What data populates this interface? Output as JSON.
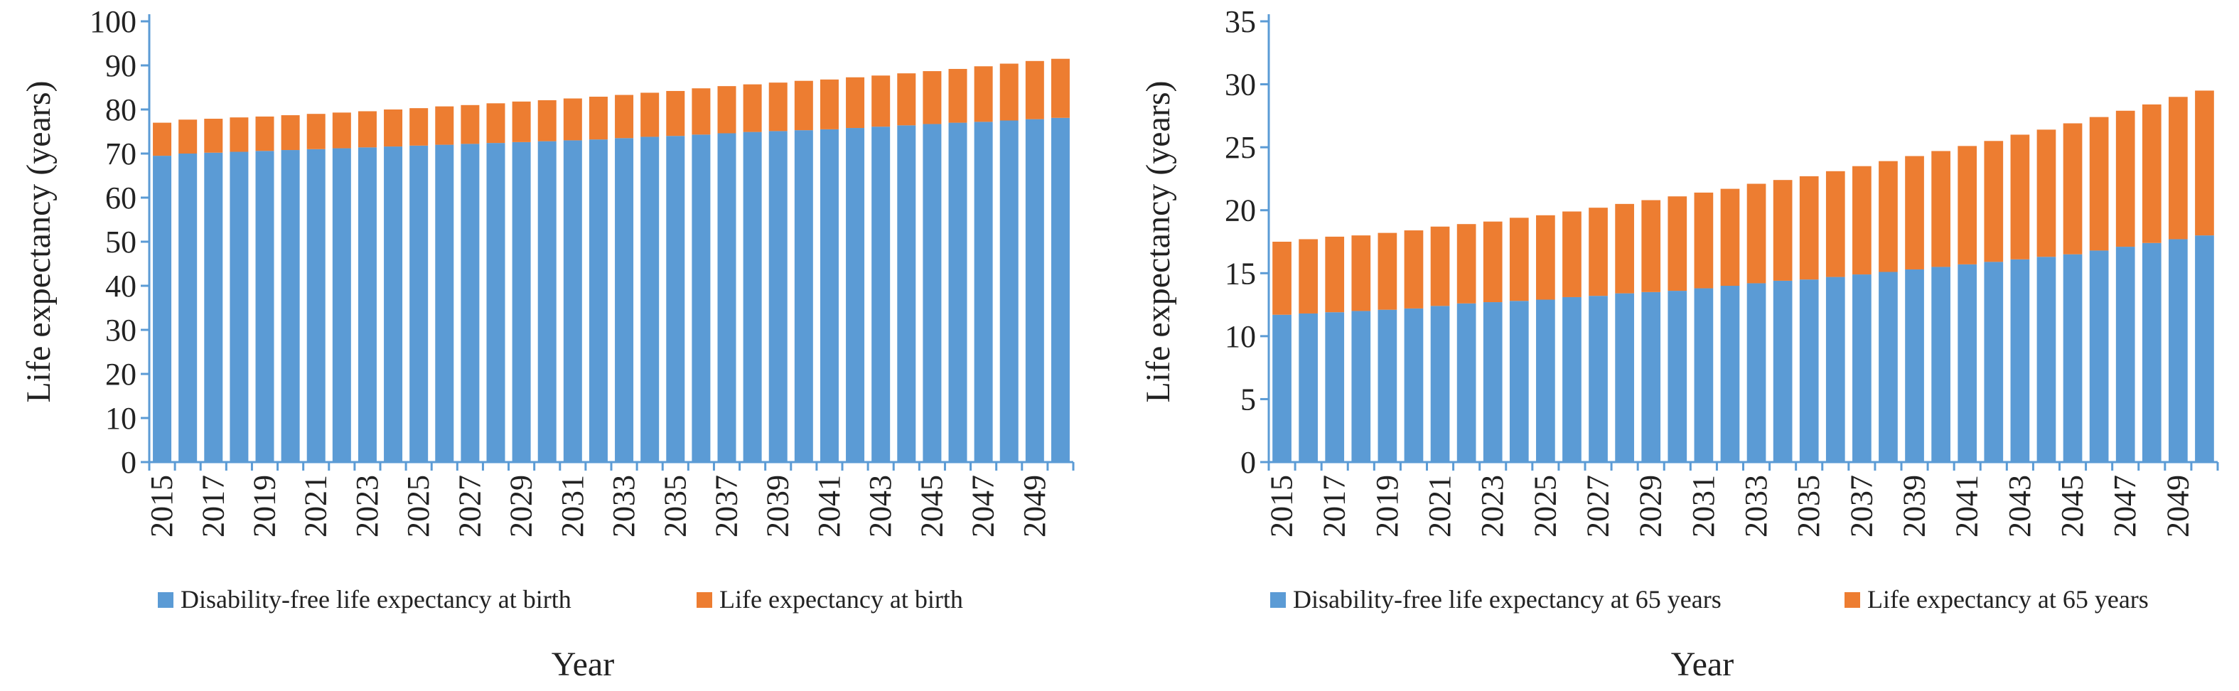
{
  "chart_data": [
    {
      "type": "bar",
      "stacked": true,
      "title": "",
      "xlabel": "Year",
      "ylabel": "Life expectancy (years)",
      "ylim": [
        0,
        100
      ],
      "ytick_step": 10,
      "grid": false,
      "legend_position": "bottom",
      "categories": [
        "2015",
        "2016",
        "2017",
        "2018",
        "2019",
        "2020",
        "2021",
        "2022",
        "2023",
        "2024",
        "2025",
        "2026",
        "2027",
        "2028",
        "2029",
        "2030",
        "2031",
        "2032",
        "2033",
        "2034",
        "2035",
        "2036",
        "2037",
        "2038",
        "2039",
        "2040",
        "2041",
        "2042",
        "2043",
        "2044",
        "2045",
        "2046",
        "2047",
        "2048",
        "2049",
        "2050"
      ],
      "tick_labels": [
        "2015",
        "2017",
        "2019",
        "2021",
        "2023",
        "2025",
        "2027",
        "2029",
        "2031",
        "2033",
        "2035",
        "2037",
        "2039",
        "2041",
        "2043",
        "2045",
        "2047",
        "2049"
      ],
      "series": [
        {
          "name": "Disability-free life expectancy at birth",
          "color": "#5b9bd5",
          "values": [
            69.5,
            70.0,
            70.2,
            70.4,
            70.6,
            70.8,
            71.0,
            71.2,
            71.4,
            71.6,
            71.8,
            72.0,
            72.2,
            72.4,
            72.6,
            72.8,
            73.0,
            73.2,
            73.5,
            73.8,
            74.0,
            74.3,
            74.6,
            74.9,
            75.1,
            75.3,
            75.5,
            75.8,
            76.1,
            76.4,
            76.7,
            77.0,
            77.2,
            77.5,
            77.8,
            78.1
          ]
        },
        {
          "name": "Life expectancy at birth",
          "color": "#ed7d31",
          "values": [
            7.5,
            7.7,
            7.7,
            7.8,
            7.8,
            7.9,
            8.0,
            8.1,
            8.2,
            8.4,
            8.5,
            8.7,
            8.8,
            9.0,
            9.2,
            9.3,
            9.5,
            9.7,
            9.8,
            10.0,
            10.2,
            10.5,
            10.7,
            10.8,
            11.0,
            11.2,
            11.3,
            11.5,
            11.6,
            11.8,
            12.0,
            12.2,
            12.6,
            12.9,
            13.2,
            13.4
          ]
        }
      ]
    },
    {
      "type": "bar",
      "stacked": true,
      "title": "",
      "xlabel": "Year",
      "ylabel": "Life expectancy (years)",
      "ylim": [
        0,
        35
      ],
      "ytick_step": 5,
      "grid": false,
      "legend_position": "bottom",
      "categories": [
        "2015",
        "2016",
        "2017",
        "2018",
        "2019",
        "2020",
        "2021",
        "2022",
        "2023",
        "2024",
        "2025",
        "2026",
        "2027",
        "2028",
        "2029",
        "2030",
        "2031",
        "2032",
        "2033",
        "2034",
        "2035",
        "2036",
        "2037",
        "2038",
        "2039",
        "2040",
        "2041",
        "2042",
        "2043",
        "2044",
        "2045",
        "2046",
        "2047",
        "2048",
        "2049",
        "2050"
      ],
      "tick_labels": [
        "2015",
        "2017",
        "2019",
        "2021",
        "2023",
        "2025",
        "2027",
        "2029",
        "2031",
        "2033",
        "2035",
        "2037",
        "2039",
        "2041",
        "2043",
        "2045",
        "2047",
        "2049"
      ],
      "series": [
        {
          "name": "Disability-free life expectancy at 65 years",
          "color": "#5b9bd5",
          "values": [
            11.7,
            11.8,
            11.9,
            12.0,
            12.1,
            12.2,
            12.4,
            12.6,
            12.7,
            12.8,
            12.9,
            13.1,
            13.2,
            13.4,
            13.5,
            13.6,
            13.8,
            14.0,
            14.2,
            14.4,
            14.5,
            14.7,
            14.9,
            15.1,
            15.3,
            15.5,
            15.7,
            15.9,
            16.1,
            16.3,
            16.5,
            16.8,
            17.1,
            17.4,
            17.7,
            18.0
          ]
        },
        {
          "name": "Life expectancy at 65 years",
          "color": "#ed7d31",
          "values": [
            5.8,
            5.9,
            6.0,
            6.0,
            6.1,
            6.2,
            6.3,
            6.3,
            6.4,
            6.6,
            6.7,
            6.8,
            7.0,
            7.1,
            7.3,
            7.5,
            7.6,
            7.7,
            7.9,
            8.0,
            8.2,
            8.4,
            8.6,
            8.8,
            9.0,
            9.2,
            9.4,
            9.6,
            9.9,
            10.1,
            10.4,
            10.6,
            10.8,
            11.0,
            11.3,
            11.5
          ]
        }
      ]
    }
  ]
}
